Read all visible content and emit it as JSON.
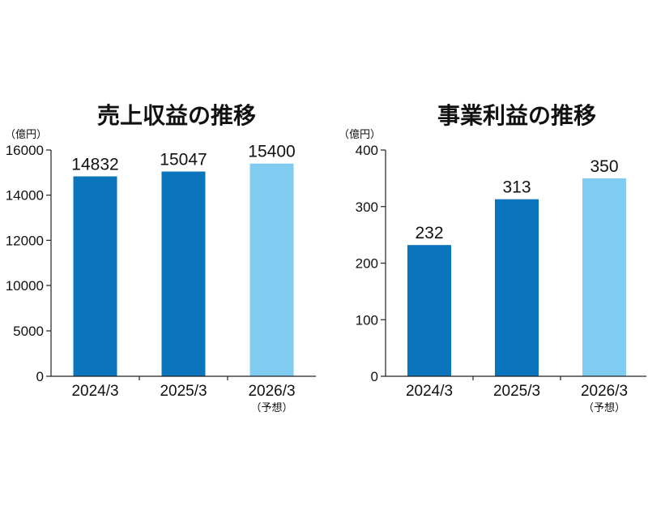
{
  "chart_data": [
    {
      "type": "bar",
      "title": "売上収益の推移",
      "unit": "（億円）",
      "categories": [
        "2024/3",
        "2025/3",
        "2026/3"
      ],
      "category_notes": [
        "",
        "",
        "（予想）"
      ],
      "values": [
        14832,
        15047,
        15400
      ],
      "value_labels": [
        "14832",
        "15047",
        "15400"
      ],
      "ylim": [
        0,
        16000
      ],
      "yticks": [
        0,
        5000,
        10000,
        12000,
        14000,
        16000
      ],
      "ytick_labels": [
        "0",
        "5000",
        "10000",
        "12000",
        "14000",
        "16000"
      ],
      "y_scale_note": "broken axis: 0 to 10000 compressed, 10000 to 16000 linear",
      "bar_colors": [
        "#0a74bd",
        "#0a74bd",
        "#7fccf0"
      ]
    },
    {
      "type": "bar",
      "title": "事業利益の推移",
      "unit": "（億円）",
      "categories": [
        "2024/3",
        "2025/3",
        "2026/3"
      ],
      "category_notes": [
        "",
        "",
        "（予想）"
      ],
      "values": [
        232,
        313,
        350
      ],
      "value_labels": [
        "232",
        "313",
        "350"
      ],
      "ylim": [
        0,
        400
      ],
      "yticks": [
        0,
        100,
        200,
        300,
        400
      ],
      "ytick_labels": [
        "0",
        "100",
        "200",
        "300",
        "400"
      ],
      "bar_colors": [
        "#0a74bd",
        "#0a74bd",
        "#7fccf0"
      ]
    }
  ]
}
